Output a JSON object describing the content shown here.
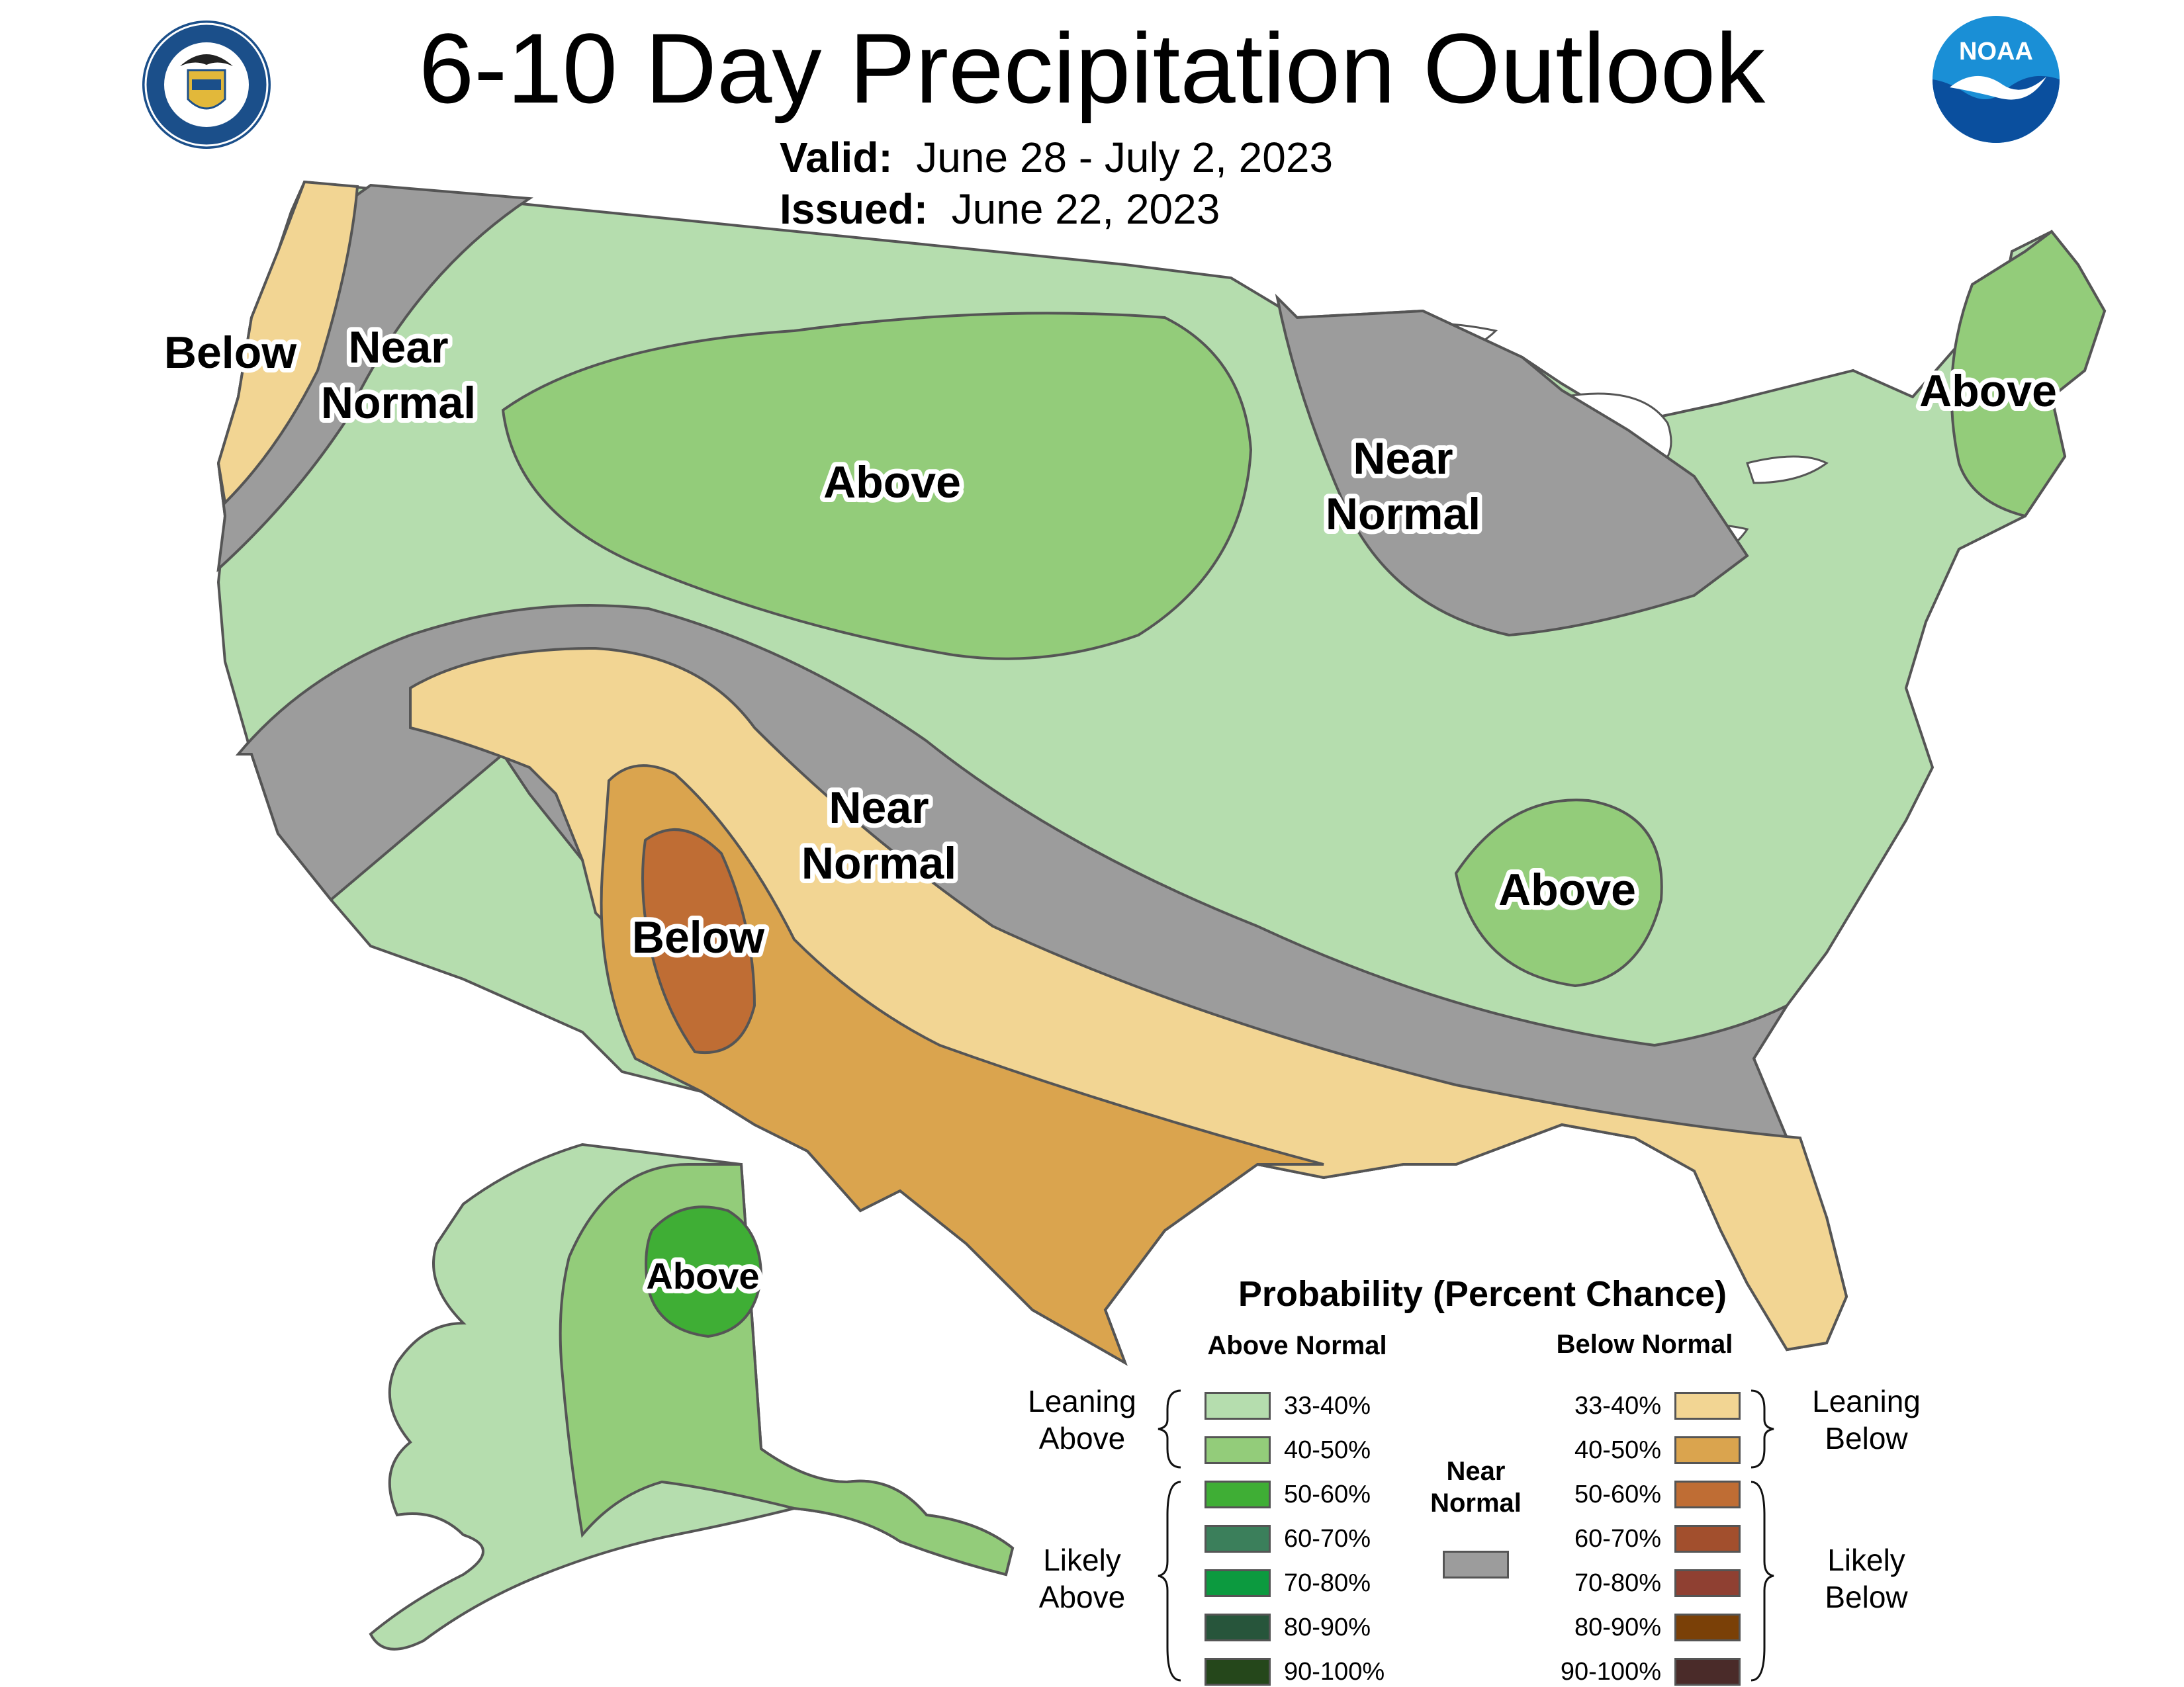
{
  "title": "6-10 Day Precipitation Outlook",
  "valid": {
    "label": "Valid:",
    "value": "June 28 - July 2, 2023"
  },
  "issued": {
    "label": "Issued:",
    "value": "June 22, 2023"
  },
  "logos": {
    "left": "DEPARTMENT OF COMMERCE · UNITED STATES OF AMERICA",
    "right": "NOAA"
  },
  "regions": [
    {
      "id": "pnw-below",
      "text": "Below"
    },
    {
      "id": "pnw-near1",
      "text": "Near"
    },
    {
      "id": "pnw-near2",
      "text": "Normal"
    },
    {
      "id": "plains-above",
      "text": "Above"
    },
    {
      "id": "gl-near1",
      "text": "Near"
    },
    {
      "id": "gl-near2",
      "text": "Normal"
    },
    {
      "id": "ne-above",
      "text": "Above"
    },
    {
      "id": "sw-near1",
      "text": "Near"
    },
    {
      "id": "sw-near2",
      "text": "Normal"
    },
    {
      "id": "sw-below",
      "text": "Below"
    },
    {
      "id": "tn-above",
      "text": "Above"
    },
    {
      "id": "ak-above",
      "text": "Above"
    }
  ],
  "colors": {
    "above_33_40": "#b5ddae",
    "above_40_50": "#93cc7a",
    "above_50_60": "#3fae35",
    "above_60_70": "#3b7f5b",
    "above_70_80": "#0c9a3f",
    "above_80_90": "#27553b",
    "above_90_100": "#25471b",
    "below_33_40": "#f2d593",
    "below_40_50": "#daa44e",
    "below_50_60": "#bf6d34",
    "below_60_70": "#a24f2d",
    "below_70_80": "#8f4032",
    "below_80_90": "#7a4007",
    "below_90_100": "#4a2b29",
    "near_normal": "#9c9c9c",
    "outline": "#555555"
  },
  "legend": {
    "title": "Probability (Percent Chance)",
    "above_header": "Above Normal",
    "below_header": "Below Normal",
    "near_header_1": "Near",
    "near_header_2": "Normal",
    "leaning_above_1": "Leaning",
    "leaning_above_2": "Above",
    "likely_above_1": "Likely",
    "likely_above_2": "Above",
    "leaning_below_1": "Leaning",
    "leaning_below_2": "Below",
    "likely_below_1": "Likely",
    "likely_below_2": "Below",
    "above": [
      "33-40%",
      "40-50%",
      "50-60%",
      "60-70%",
      "70-80%",
      "80-90%",
      "90-100%"
    ],
    "below": [
      "33-40%",
      "40-50%",
      "50-60%",
      "60-70%",
      "70-80%",
      "80-90%",
      "90-100%"
    ]
  }
}
